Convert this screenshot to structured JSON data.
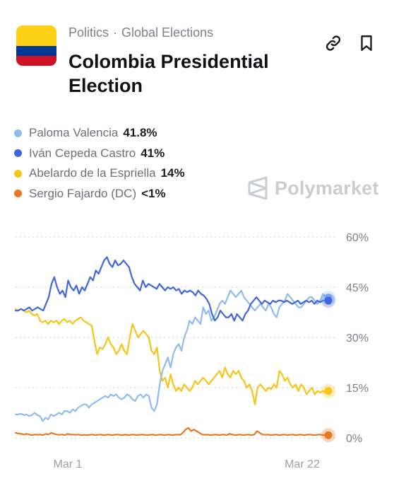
{
  "header": {
    "breadcrumb_category": "Politics",
    "breadcrumb_separator": "·",
    "breadcrumb_subcategory": "Global Elections",
    "title": "Colombia Presidential Election",
    "flag_colors": [
      "#fcd116",
      "#003893",
      "#ce1126"
    ],
    "actions": [
      {
        "icon": "link-icon"
      },
      {
        "icon": "bookmark-icon"
      }
    ]
  },
  "watermark": "Polymarket",
  "chart_data": {
    "type": "line",
    "x_ticks": [
      "Mar 1",
      "Mar 22"
    ],
    "y_ticks": [
      "60%",
      "45%",
      "30%",
      "15%",
      "0%"
    ],
    "ylim": [
      0,
      60
    ],
    "grid": true,
    "legend_position": "top-left",
    "series": [
      {
        "name": "Paloma Valencia",
        "current_label": "41.8%",
        "color": "#8fbcec",
        "values": [
          7,
          7,
          7.2,
          6.8,
          7,
          6.5,
          6.8,
          7.5,
          6.8,
          6.5,
          5,
          6,
          5.5,
          7,
          6.5,
          7,
          7.5,
          7,
          8,
          8,
          7.5,
          8.5,
          8,
          9,
          9.5,
          10,
          10,
          9,
          10,
          10.5,
          11,
          11.5,
          12,
          12.5,
          12,
          13,
          12.5,
          13,
          12,
          11.5,
          12,
          13,
          12.5,
          11.5,
          11,
          12.5,
          13,
          12,
          13,
          12.5,
          9,
          8,
          10,
          16,
          20,
          22,
          24,
          21,
          25,
          27,
          28,
          26,
          30,
          32,
          35,
          34,
          36,
          35,
          34,
          39,
          37,
          38,
          35,
          36,
          38,
          40,
          41,
          40,
          42,
          44,
          43,
          42,
          43,
          44,
          42,
          41,
          40,
          39,
          38,
          39,
          40,
          39,
          38,
          40,
          39,
          37,
          36,
          39,
          40,
          41,
          43,
          42,
          41,
          40,
          39,
          39,
          40,
          41,
          42,
          42,
          41,
          40,
          41,
          43,
          42,
          41.8
        ]
      },
      {
        "name": "Iván Cepeda Castro",
        "current_label": "41%",
        "color": "#4066de",
        "values": [
          38,
          38,
          38.5,
          38,
          38.5,
          39,
          38,
          38.5,
          39,
          38.5,
          38,
          40,
          42,
          46,
          48,
          45,
          43,
          44,
          42,
          47,
          45,
          44,
          45.5,
          43,
          45,
          44,
          46,
          48,
          47,
          50,
          49,
          51,
          53,
          54,
          52,
          51,
          53,
          51.5,
          52,
          53,
          52,
          51,
          48,
          46,
          45,
          44,
          47,
          45,
          46,
          45.5,
          45,
          44.5,
          46,
          45,
          44,
          45,
          44.5,
          45,
          44,
          44.5,
          43,
          44,
          43.5,
          44,
          43.5,
          42.5,
          44,
          43,
          42.5,
          41.5,
          40,
          37,
          35,
          36,
          38,
          37,
          36,
          36,
          37,
          35,
          37,
          36,
          35,
          37,
          38,
          40,
          41,
          42,
          41,
          40,
          41,
          40.5,
          40,
          41,
          40.5,
          41,
          41,
          40.5,
          41,
          40.5,
          40,
          40.5,
          41,
          40,
          40.5,
          41,
          40.5,
          41,
          40,
          41,
          40.5,
          41,
          41,
          41
        ]
      },
      {
        "name": "Abelardo de la Espriella",
        "current_label": "14%",
        "color": "#f5c518",
        "values": [
          38.5,
          38,
          38.5,
          38,
          37.5,
          38,
          37,
          36.5,
          37,
          35,
          34.5,
          35,
          34,
          35,
          34.5,
          35,
          34,
          35,
          35.5,
          34.5,
          35,
          34,
          35,
          35.5,
          36,
          35,
          34.5,
          34,
          33.5,
          29,
          25,
          27,
          26.5,
          28,
          30,
          28,
          27,
          25,
          26,
          28,
          26,
          25,
          30,
          34,
          32,
          30,
          31,
          32,
          31,
          30,
          26,
          25,
          27,
          20,
          17,
          18,
          15,
          19,
          16,
          14,
          15,
          14,
          16,
          15,
          14,
          15,
          17,
          16,
          17,
          18,
          17,
          16,
          17,
          18,
          19,
          20,
          18,
          21,
          19,
          18,
          20,
          19,
          20,
          18,
          17,
          15,
          16,
          14,
          10,
          15,
          16,
          15,
          14,
          15,
          14.5,
          16,
          15,
          20,
          19,
          17,
          18,
          16,
          15,
          16,
          14,
          16,
          15,
          13,
          14,
          15,
          13,
          14,
          13.5,
          14,
          13.5,
          14
        ]
      },
      {
        "name": "Sergio Fajardo (DC)",
        "current_label": "<1%",
        "color": "#e87722",
        "values": [
          1.5,
          1.3,
          1.2,
          1,
          1.2,
          1,
          0.8,
          1,
          0.9,
          1,
          0.8,
          1.2,
          1,
          1.5,
          1.2,
          1,
          0.9,
          1,
          0.8,
          1.2,
          1,
          1,
          0.9,
          1,
          0.8,
          0.9,
          0.8,
          0.9,
          1,
          0.8,
          0.9,
          1,
          0.8,
          0.9,
          1,
          0.8,
          0.9,
          1,
          0.9,
          0.8,
          1,
          0.8,
          0.9,
          1,
          0.8,
          0.9,
          1,
          0.9,
          0.8,
          0.9,
          1,
          0.8,
          0.9,
          1,
          0.8,
          0.9,
          1,
          0.8,
          0.9,
          1,
          0.9,
          1.5,
          2.5,
          3,
          2,
          2.5,
          2,
          1.5,
          1,
          0.9,
          1,
          0.8,
          0.9,
          1,
          0.8,
          0.9,
          1,
          0.8,
          1.2,
          1,
          0.8,
          0.9,
          1,
          0.8,
          0.9,
          1,
          0.8,
          1,
          2,
          1.5,
          1,
          0.9,
          1,
          0.8,
          0.9,
          1,
          0.8,
          0.9,
          1,
          0.8,
          0.9,
          1,
          0.8,
          0.9,
          1,
          0.8,
          0.9,
          1,
          0.9,
          0.8,
          0.9,
          1,
          0.8,
          0.9,
          0.8
        ]
      }
    ]
  }
}
